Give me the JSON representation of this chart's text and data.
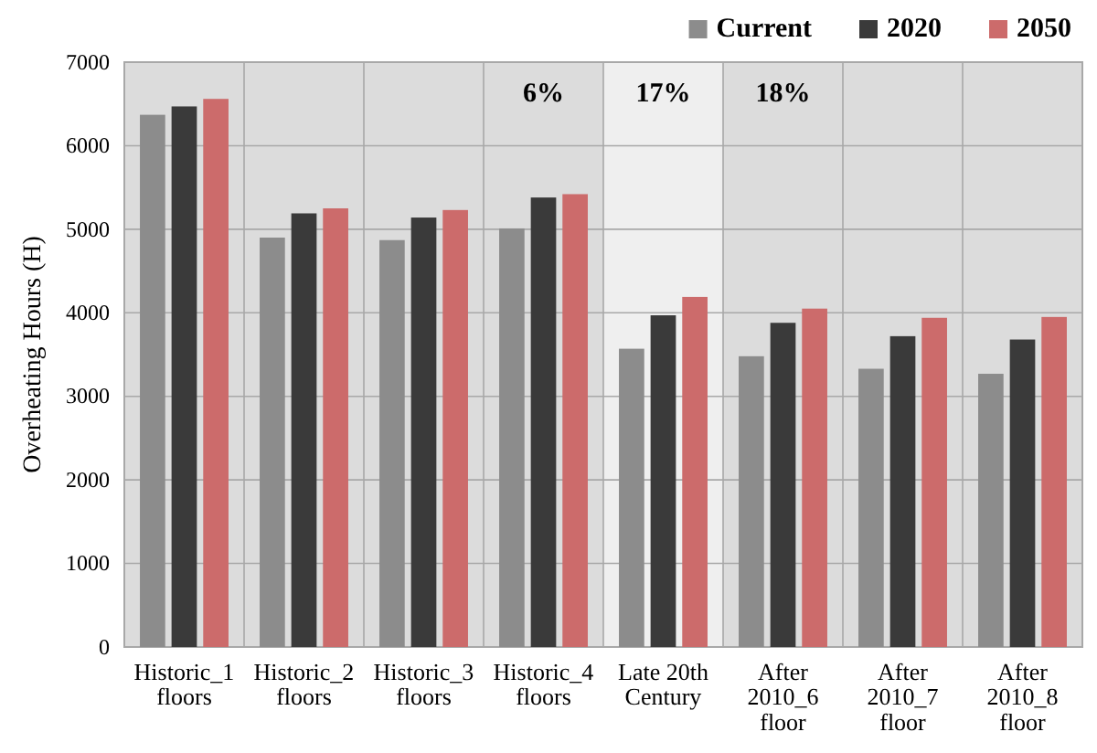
{
  "chart_data": {
    "type": "bar",
    "ylabel": "Overheating Hours (H)",
    "categories": [
      "Historic_1 floors",
      "Historic_2 floors",
      "Historic_3 floors",
      "Historic_4 floors",
      "Late 20th Century",
      "After 2010_6 floor",
      "After 2010_7 floor",
      "After 2010_8 floor"
    ],
    "series": [
      {
        "name": "Current",
        "color": "#8c8c8c",
        "values": [
          6370,
          4900,
          4870,
          5010,
          3570,
          3480,
          3330,
          3270
        ]
      },
      {
        "name": "2020",
        "color": "#3a3a3a",
        "values": [
          6470,
          5190,
          5140,
          5380,
          3970,
          3880,
          3720,
          3680
        ]
      },
      {
        "name": "2050",
        "color": "#cc6b6b",
        "values": [
          6560,
          5250,
          5230,
          5420,
          4190,
          4050,
          3940,
          3950
        ]
      }
    ],
    "ylim": [
      0,
      7000
    ],
    "yticks": [
      0,
      1000,
      2000,
      3000,
      4000,
      5000,
      6000,
      7000
    ],
    "grid": true,
    "legend": "top right",
    "bands": [
      {
        "axis": "x",
        "from": "Late 20th Century",
        "to": "Late 20th Century",
        "color": "#efefef"
      }
    ],
    "annotations": [
      "6%",
      "17%",
      "18%"
    ]
  }
}
